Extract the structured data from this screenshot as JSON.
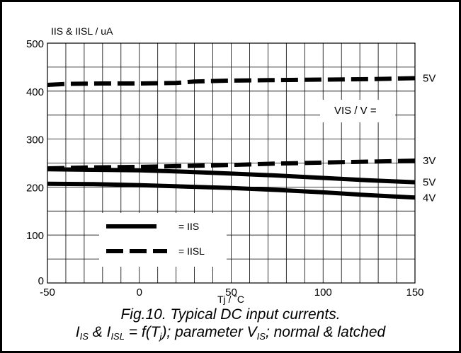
{
  "chart_data": {
    "type": "line",
    "ylabel": "IIS & IISL / uA",
    "xlabel": "Tj / ˚C",
    "xlim": [
      -50,
      150
    ],
    "ylim": [
      0,
      500
    ],
    "x_ticks": [
      "-50",
      "0",
      "50",
      "100",
      "150"
    ],
    "y_ticks": [
      "0",
      "100",
      "200",
      "300",
      "400",
      "500"
    ],
    "grid": true,
    "param_label": "VIS / V =",
    "series": [
      {
        "style": "dashed",
        "end_label": "5V",
        "x": [
          -50,
          -40,
          -20,
          0,
          20,
          30,
          50,
          75,
          100,
          125,
          150
        ],
        "y": [
          413,
          415,
          416,
          416,
          417,
          420,
          422,
          423,
          424,
          425,
          427
        ]
      },
      {
        "style": "dashed",
        "end_label": "3V",
        "x": [
          -50,
          -25,
          0,
          25,
          50,
          75,
          100,
          125,
          150
        ],
        "y": [
          239,
          241,
          242,
          244,
          246,
          249,
          251,
          253,
          255
        ]
      },
      {
        "style": "solid",
        "end_label": "5V",
        "x": [
          -50,
          -25,
          0,
          25,
          50,
          75,
          100,
          125,
          150
        ],
        "y": [
          237,
          236,
          235,
          232,
          228,
          224,
          219,
          214,
          210
        ]
      },
      {
        "style": "solid",
        "end_label": "4V",
        "x": [
          -50,
          -25,
          0,
          25,
          50,
          75,
          100,
          125,
          150
        ],
        "y": [
          207,
          206,
          204,
          201,
          198,
          194,
          189,
          183,
          178
        ]
      }
    ],
    "legend": {
      "position": "bottom-left",
      "entries": [
        {
          "style": "solid",
          "label": "= IIS"
        },
        {
          "style": "dashed",
          "label": "= IISL"
        }
      ]
    }
  },
  "caption": {
    "line1": "Fig.10.   Typical DC input currents.",
    "l2_I1": "I",
    "l2_s1": "IS",
    "l2_amp": " & I",
    "l2_s2": "ISL",
    "l2_mid": " = f(T",
    "l2_s3": "j",
    "l2_mid2": "); parameter V",
    "l2_s4": "IS",
    "l2_end": "; normal & latched"
  }
}
